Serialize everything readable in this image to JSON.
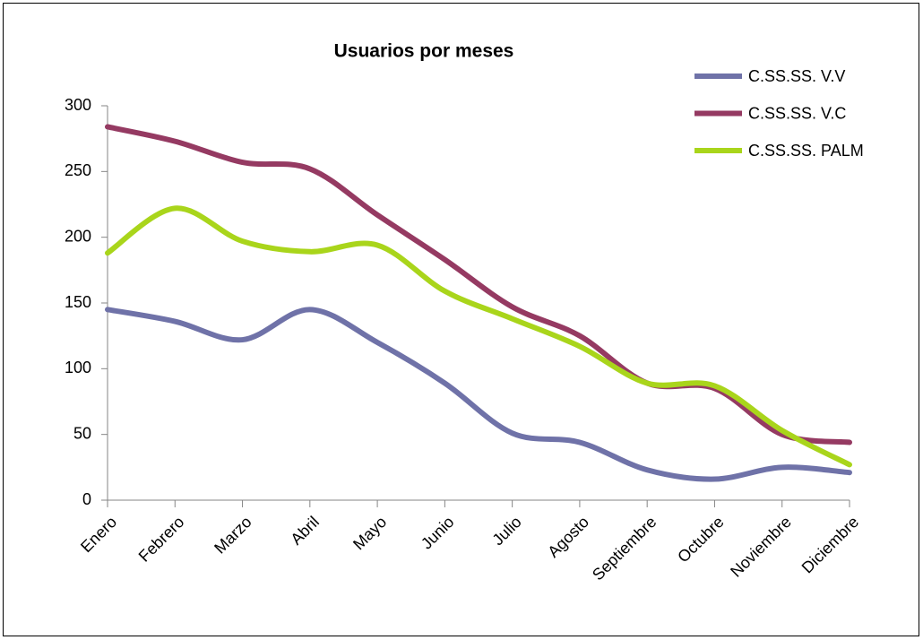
{
  "chart_data": {
    "type": "line",
    "title": "Usuarios por meses",
    "categories": [
      "Enero",
      "Febrero",
      "Marzo",
      "Abril",
      "Mayo",
      "Junio",
      "Julio",
      "Agosto",
      "Septiembre",
      "Octubre",
      "Noviembre",
      "Diciembre"
    ],
    "series": [
      {
        "name": "C.SS.SS. V.V",
        "color": "#6f72a8",
        "values": [
          145,
          136,
          122,
          145,
          120,
          89,
          51,
          44,
          23,
          16,
          25,
          21
        ]
      },
      {
        "name": "C.SS.SS. V.C",
        "color": "#953a62",
        "values": [
          284,
          273,
          257,
          252,
          217,
          183,
          147,
          125,
          89,
          85,
          50,
          44
        ]
      },
      {
        "name": "C.SS.SS. PALM",
        "color": "#a9d51b",
        "values": [
          188,
          222,
          197,
          189,
          194,
          159,
          138,
          117,
          89,
          87,
          53,
          27
        ]
      }
    ],
    "ylim": [
      0,
      300
    ],
    "yticks": [
      0,
      50,
      100,
      150,
      200,
      250,
      300
    ],
    "grid": false,
    "smooth": true,
    "legend": "top-right"
  }
}
